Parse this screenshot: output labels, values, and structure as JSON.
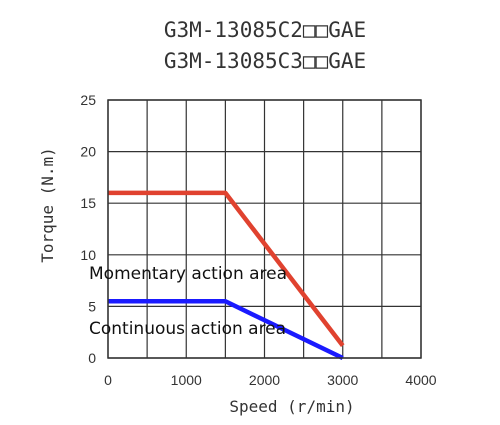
{
  "chart_data": {
    "type": "line",
    "title_lines": [
      "G3M-13085C2□□GAE",
      "G3M-13085C3□□GAE"
    ],
    "xlabel": "Speed (r/min)",
    "ylabel": "Torque (N.m)",
    "xlim": [
      0,
      4000
    ],
    "ylim": [
      0,
      25
    ],
    "x_ticks": [
      0,
      1000,
      2000,
      3000,
      4000
    ],
    "y_ticks": [
      0,
      5,
      10,
      15,
      20,
      25
    ],
    "grid": true,
    "series": [
      {
        "color": "#e0422f",
        "x": [
          0,
          1500,
          3000
        ],
        "y": [
          16,
          16,
          1.2
        ]
      },
      {
        "color": "#1a1aff",
        "x": [
          0,
          1500,
          3000
        ],
        "y": [
          5.5,
          5.5,
          0
        ]
      }
    ],
    "annotations": [
      "Momentary action area",
      "Continuous action area"
    ]
  }
}
